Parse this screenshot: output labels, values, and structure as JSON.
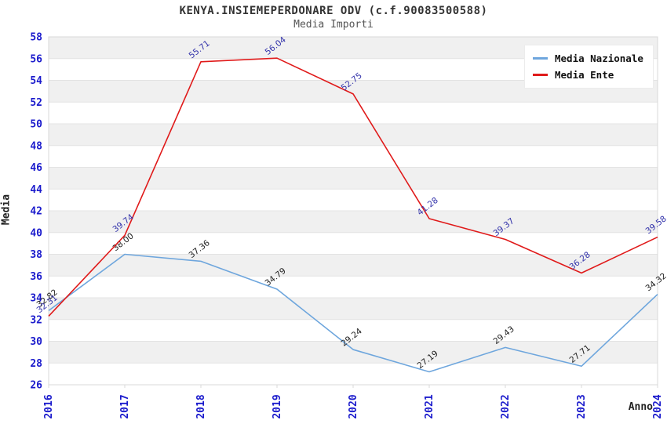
{
  "header": {
    "title": "KENYA.INSIEMEPERDONARE ODV (c.f.90083500588)",
    "subtitle": "Media Importi"
  },
  "chart_data": {
    "type": "line",
    "title": "KENYA.INSIEMEPERDONARE ODV (c.f.90083500588)",
    "subtitle": "Media Importi",
    "xlabel": "Anno",
    "ylabel": "Media",
    "categories": [
      "2016",
      "2017",
      "2018",
      "2019",
      "2020",
      "2021",
      "2022",
      "2023",
      "2024"
    ],
    "series": [
      {
        "name": "Media Nazionale",
        "color": "#6ea6dd",
        "label_color": "#222222",
        "values": [
          32.82,
          38.0,
          37.36,
          34.79,
          29.24,
          27.19,
          29.43,
          27.71,
          34.32
        ]
      },
      {
        "name": "Media Ente",
        "color": "#e01a1a",
        "label_color": "#3232aa",
        "values": [
          32.31,
          39.74,
          55.71,
          56.04,
          52.75,
          41.28,
          39.37,
          36.28,
          39.58
        ]
      }
    ],
    "ylim": [
      26,
      58
    ],
    "yticks": [
      26,
      28,
      30,
      32,
      34,
      36,
      38,
      40,
      42,
      44,
      46,
      48,
      50,
      52,
      54,
      56,
      58
    ],
    "grid": true,
    "legend_position": "top-right",
    "styles": {
      "tick_label_color": "#1a1acc",
      "band_color": "#f0f0f0",
      "grid_color": "#e3e3e3",
      "border_color": "#d8d8d8"
    }
  }
}
